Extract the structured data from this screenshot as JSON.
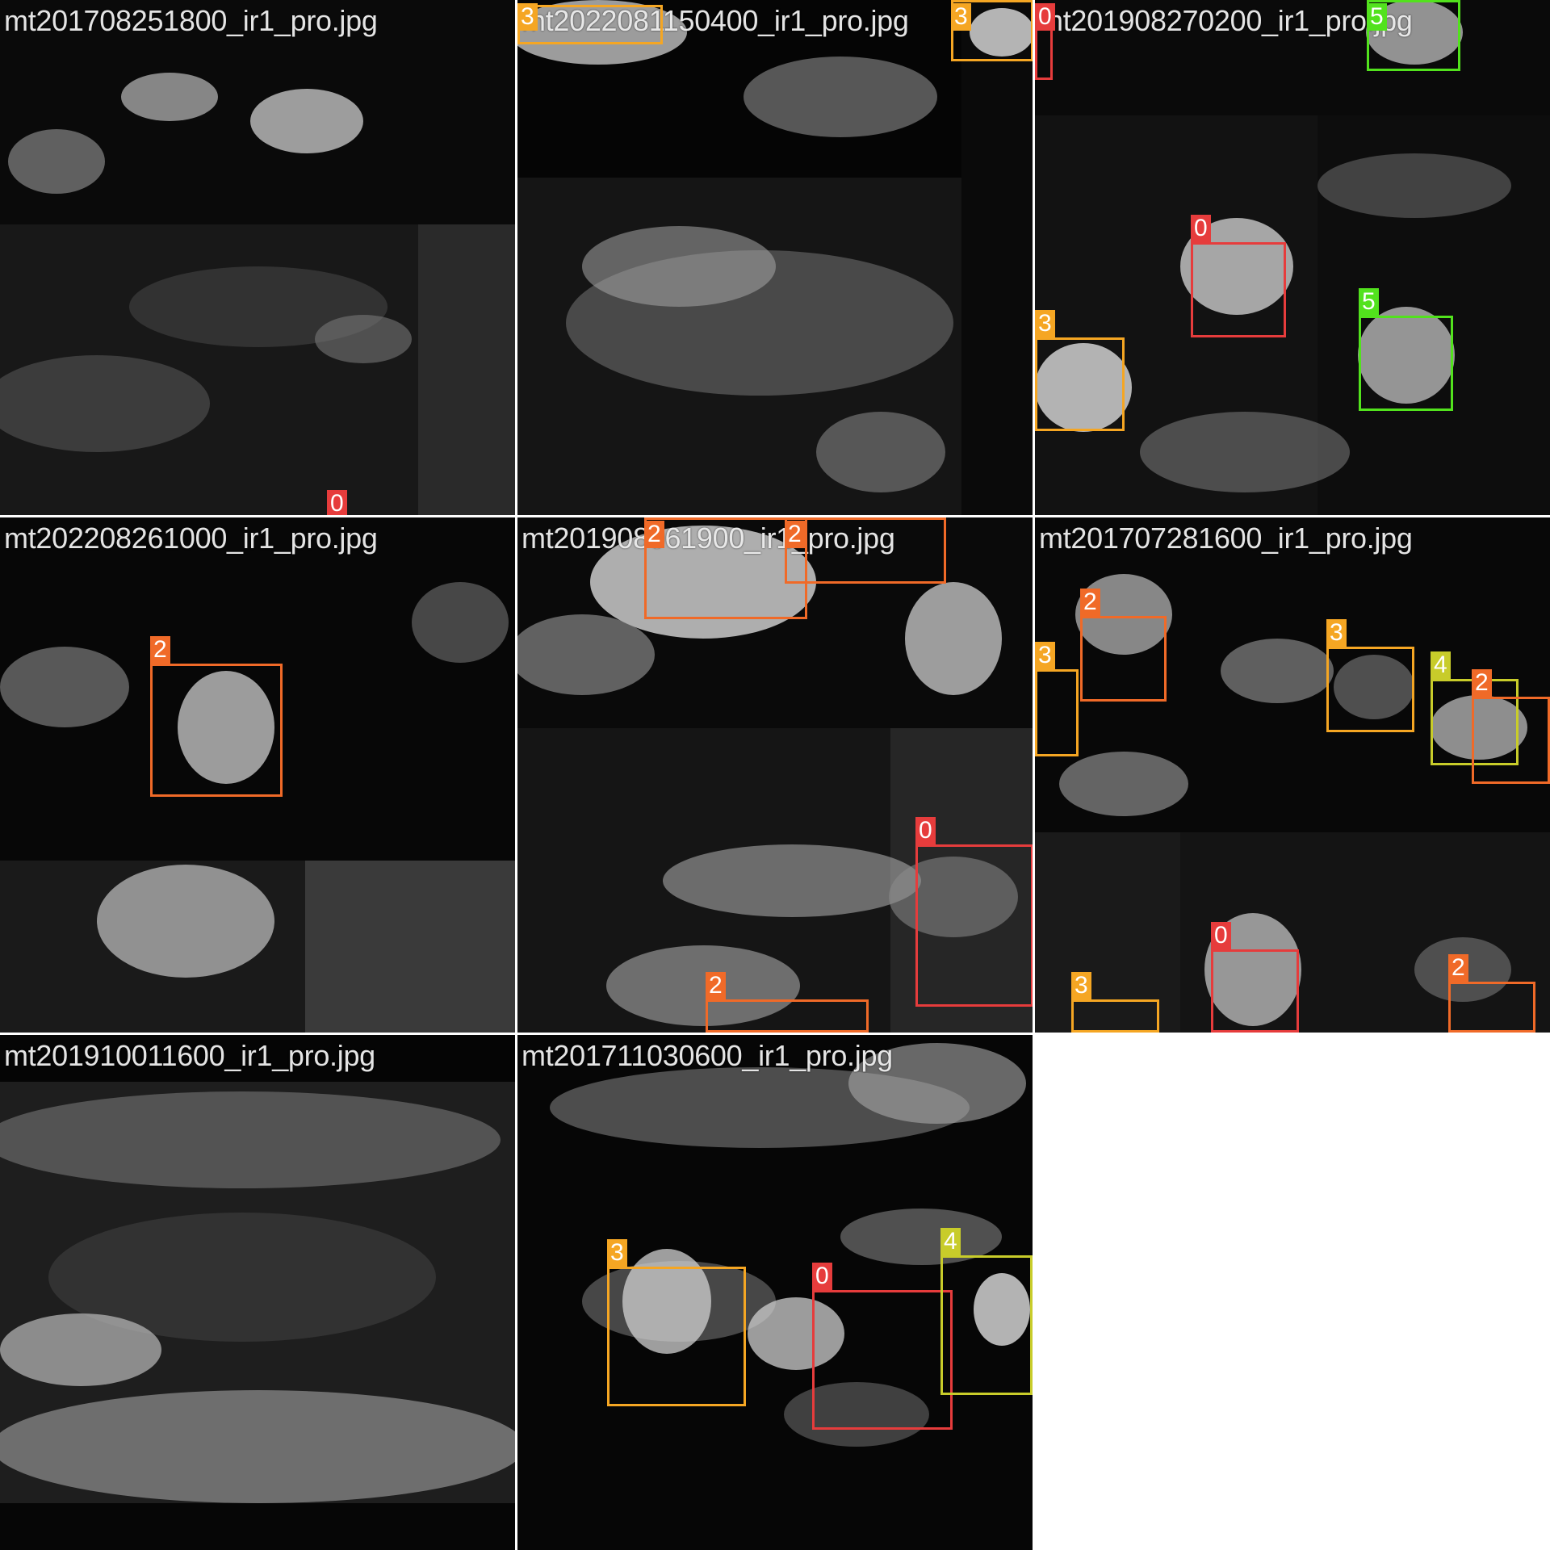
{
  "classes": {
    "0": {
      "color": "#e63c3c"
    },
    "2": {
      "color": "#f06a28"
    },
    "3": {
      "color": "#f5a623"
    },
    "4": {
      "color": "#c8cc2a"
    },
    "5": {
      "color": "#52e21d"
    }
  },
  "tiles": [
    {
      "name": "mt201708251800_ir1_pro.jpg",
      "detections": [
        {
          "label": "0"
        }
      ]
    },
    {
      "name": "mt2022081150400_ir1_pro.jpg",
      "detections": [
        {
          "label": "3"
        },
        {
          "label": "3"
        }
      ]
    },
    {
      "name": "mt201908270200_ir1_pro.jpg",
      "detections": [
        {
          "label": "0"
        },
        {
          "label": "5"
        },
        {
          "label": "0"
        },
        {
          "label": "3"
        },
        {
          "label": "5"
        }
      ]
    },
    {
      "name": "mt202208261000_ir1_pro.jpg",
      "detections": [
        {
          "label": "2"
        }
      ]
    },
    {
      "name": "mt201908061900_ir1_pro.jpg",
      "detections": [
        {
          "label": "2"
        },
        {
          "label": "2"
        },
        {
          "label": "0"
        },
        {
          "label": "2"
        }
      ]
    },
    {
      "name": "mt201707281600_ir1_pro.jpg",
      "detections": [
        {
          "label": "2"
        },
        {
          "label": "3"
        },
        {
          "label": "3"
        },
        {
          "label": "4"
        },
        {
          "label": "2"
        },
        {
          "label": "0"
        },
        {
          "label": "3"
        },
        {
          "label": "2"
        }
      ]
    },
    {
      "name": "mt201910011600_ir1_pro.jpg",
      "detections": []
    },
    {
      "name": "mt201711030600_ir1_pro.jpg",
      "detections": [
        {
          "label": "3"
        },
        {
          "label": "0"
        },
        {
          "label": "4"
        }
      ]
    }
  ]
}
